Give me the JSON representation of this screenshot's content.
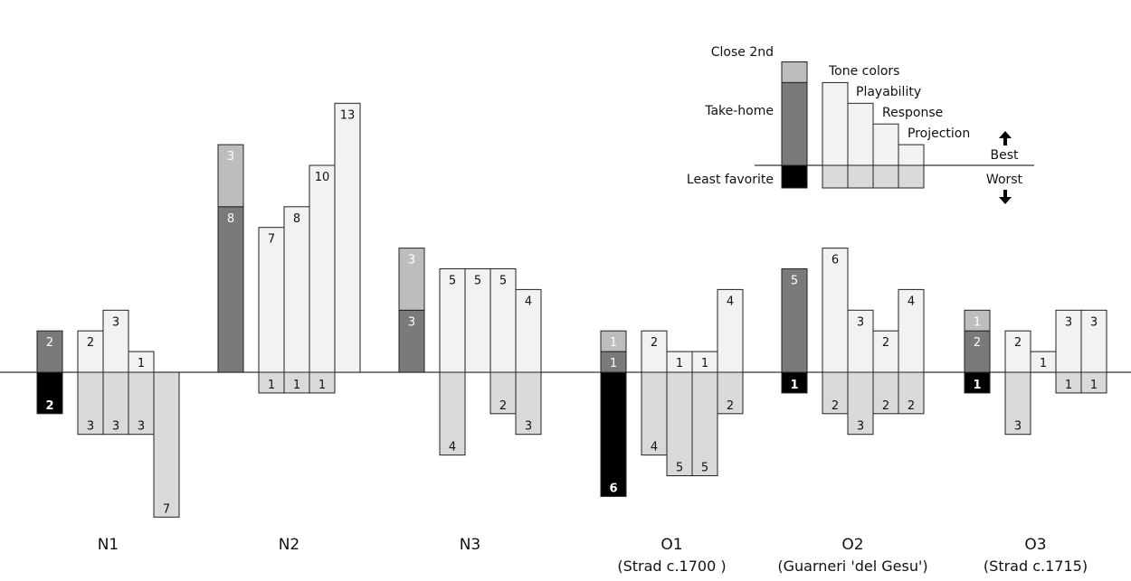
{
  "chart_data": {
    "type": "bar",
    "title": "",
    "xlabel": "",
    "ylabel": "",
    "grid": false,
    "colors": {
      "close_2nd": "#bdbdbd",
      "take_home": "#7a7a7a",
      "least_favorite": "#000000",
      "best_bar": "#f2f2f2",
      "worst_bar": "#d9d9d9",
      "outline": "#222222"
    },
    "legend": {
      "close_2nd": "Close 2nd",
      "take_home": "Take-home",
      "least_favorite": "Least favorite",
      "tone_colors": "Tone colors",
      "playability": "Playability",
      "response": "Response",
      "projection": "Projection",
      "best": "Best",
      "worst": "Worst"
    },
    "instruments": [
      {
        "name": "N1",
        "sub": "",
        "take_home": 2,
        "close_2nd": 0,
        "least_favorite": 2,
        "best": [
          2,
          3,
          1,
          0
        ],
        "worst": [
          3,
          3,
          3,
          7
        ]
      },
      {
        "name": "N2",
        "sub": "",
        "take_home": 8,
        "close_2nd": 3,
        "least_favorite": 0,
        "best": [
          7,
          8,
          10,
          13
        ],
        "worst": [
          1,
          1,
          1,
          0
        ]
      },
      {
        "name": "N3",
        "sub": "",
        "take_home": 3,
        "close_2nd": 3,
        "least_favorite": 0,
        "best": [
          5,
          5,
          5,
          4
        ],
        "worst": [
          4,
          0,
          2,
          3
        ]
      },
      {
        "name": "O1",
        "sub": "(Strad c.1700 )",
        "take_home": 1,
        "close_2nd": 1,
        "least_favorite": 6,
        "best": [
          2,
          1,
          1,
          4
        ],
        "worst": [
          4,
          5,
          5,
          2
        ]
      },
      {
        "name": "O2",
        "sub": "(Guarneri 'del Gesu')",
        "take_home": 5,
        "close_2nd": 0,
        "least_favorite": 1,
        "best": [
          6,
          3,
          2,
          4
        ],
        "worst": [
          2,
          3,
          2,
          2
        ]
      },
      {
        "name": "O3",
        "sub": "(Strad c.1715)",
        "take_home": 2,
        "close_2nd": 1,
        "least_favorite": 1,
        "best": [
          2,
          1,
          3,
          3
        ],
        "worst": [
          3,
          0,
          1,
          1
        ]
      }
    ]
  }
}
